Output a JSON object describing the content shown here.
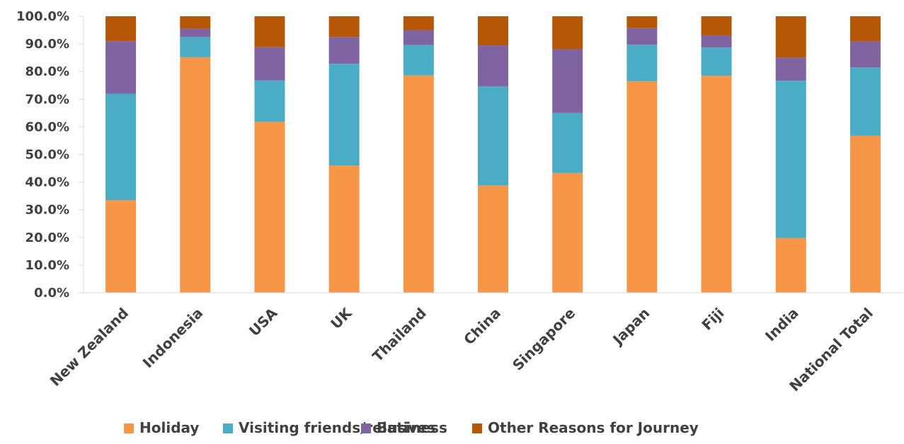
{
  "chart_data": {
    "type": "bar",
    "stacked": true,
    "title": "",
    "xlabel": "",
    "ylabel": "",
    "ylim": [
      0,
      100
    ],
    "y_tick_labels": [
      "0.0%",
      "10.0%",
      "20.0%",
      "30.0%",
      "40.0%",
      "50.0%",
      "60.0%",
      "70.0%",
      "80.0%",
      "90.0%",
      "100.0%"
    ],
    "grid": false,
    "legend_position": "bottom",
    "categories": [
      "New Zealand",
      "Indonesia",
      "USA",
      "UK",
      "Thailand",
      "China",
      "Singapore",
      "Japan",
      "Fiji",
      "India",
      "National Total"
    ],
    "series": [
      {
        "name": "Holiday",
        "color": "#F79646",
        "values": [
          33.5,
          85.2,
          61.8,
          46.0,
          78.6,
          38.8,
          43.3,
          76.5,
          78.5,
          19.8,
          56.8
        ]
      },
      {
        "name": "Visiting friends/relatives",
        "color": "#4BACC6",
        "values": [
          38.5,
          7.3,
          15.0,
          36.8,
          11.0,
          35.8,
          21.7,
          13.2,
          10.2,
          56.9,
          24.7
        ]
      },
      {
        "name": "Business",
        "color": "#8064A2",
        "values": [
          19.0,
          3.0,
          12.0,
          9.7,
          5.4,
          14.9,
          23.1,
          6.0,
          4.4,
          8.4,
          9.4
        ]
      },
      {
        "name": "Other Reasons for Journey",
        "color": "#B65708",
        "values": [
          9.0,
          4.5,
          11.2,
          7.5,
          5.0,
          10.5,
          11.9,
          4.3,
          6.9,
          14.9,
          9.1
        ]
      }
    ]
  }
}
